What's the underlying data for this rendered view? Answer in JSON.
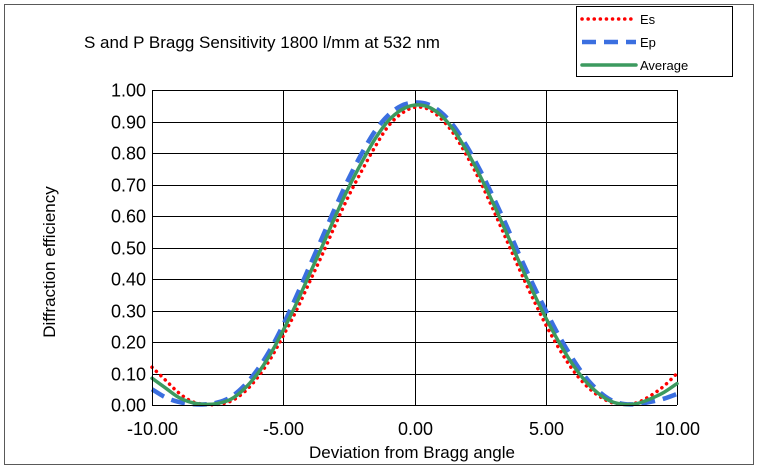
{
  "chart_data": {
    "type": "line",
    "title": "S and P Bragg Sensitivity  1800 l/mm at 532 nm",
    "xlabel": "Deviation from Bragg angle",
    "ylabel": "Diffraction efficiency",
    "xlim": [
      -10,
      10
    ],
    "ylim": [
      0,
      1
    ],
    "x_ticks": [
      "-10.00",
      "-5.00",
      "0.00",
      "5.00",
      "10.00"
    ],
    "y_ticks": [
      "0.00",
      "0.10",
      "0.20",
      "0.30",
      "0.40",
      "0.50",
      "0.60",
      "0.70",
      "0.80",
      "0.90",
      "1.00"
    ],
    "grid": true,
    "legend_position": "top-right",
    "x": [
      -10,
      -9.5,
      -9,
      -8.5,
      -8,
      -7.5,
      -7,
      -6.5,
      -6,
      -5.5,
      -5,
      -4.5,
      -4,
      -3.5,
      -3,
      -2.5,
      -2,
      -1.5,
      -1,
      -0.5,
      0,
      0.5,
      1,
      1.5,
      2,
      2.5,
      3,
      3.5,
      4,
      4.5,
      5,
      5.5,
      6,
      6.5,
      7,
      7.5,
      8,
      8.5,
      9,
      9.5,
      10
    ],
    "series": [
      {
        "name": "Es",
        "color": "#ff0000",
        "style": "dotted",
        "values": [
          0.12,
          0.08,
          0.04,
          0.012,
          0.002,
          0.002,
          0.012,
          0.04,
          0.085,
          0.145,
          0.22,
          0.3,
          0.39,
          0.48,
          0.575,
          0.665,
          0.745,
          0.82,
          0.885,
          0.925,
          0.945,
          0.94,
          0.91,
          0.86,
          0.79,
          0.71,
          0.62,
          0.525,
          0.43,
          0.34,
          0.255,
          0.18,
          0.115,
          0.065,
          0.03,
          0.008,
          0.002,
          0.008,
          0.03,
          0.06,
          0.1
        ]
      },
      {
        "name": "Ep",
        "color": "#3b6fe0",
        "style": "dashed",
        "values": [
          0.05,
          0.025,
          0.01,
          0.003,
          0.002,
          0.008,
          0.025,
          0.06,
          0.11,
          0.175,
          0.255,
          0.345,
          0.44,
          0.535,
          0.63,
          0.72,
          0.8,
          0.87,
          0.92,
          0.95,
          0.96,
          0.955,
          0.93,
          0.885,
          0.82,
          0.745,
          0.66,
          0.57,
          0.475,
          0.385,
          0.3,
          0.22,
          0.15,
          0.09,
          0.045,
          0.015,
          0.003,
          0.003,
          0.01,
          0.02,
          0.035
        ]
      },
      {
        "name": "Average",
        "color": "#3c9a5f",
        "style": "solid",
        "values": [
          0.085,
          0.055,
          0.025,
          0.008,
          0.002,
          0.005,
          0.018,
          0.05,
          0.097,
          0.16,
          0.237,
          0.322,
          0.415,
          0.507,
          0.602,
          0.692,
          0.772,
          0.845,
          0.902,
          0.937,
          0.952,
          0.947,
          0.92,
          0.872,
          0.805,
          0.727,
          0.64,
          0.547,
          0.452,
          0.362,
          0.277,
          0.2,
          0.132,
          0.077,
          0.037,
          0.011,
          0.002,
          0.005,
          0.02,
          0.04,
          0.068
        ]
      }
    ]
  }
}
